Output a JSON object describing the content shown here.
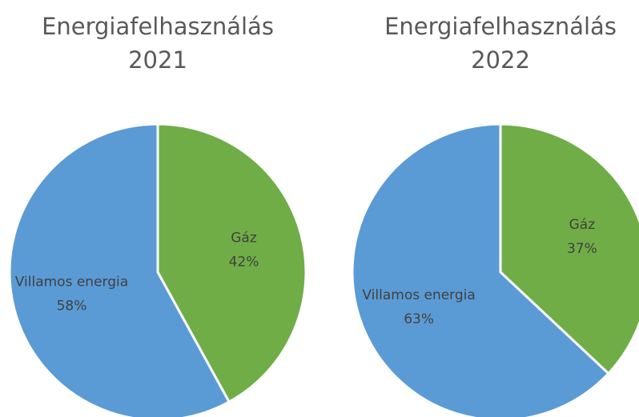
{
  "chart_data": [
    {
      "type": "pie",
      "title": "Energiafelhasználás 2021",
      "categories": [
        "Gáz",
        "Villamos energia"
      ],
      "values": [
        42,
        58
      ],
      "value_labels": [
        "42%",
        "58%"
      ],
      "colors": [
        "#70ad47",
        "#5b9bd5"
      ]
    },
    {
      "type": "pie",
      "title": "Energiafelhasználás 2022",
      "categories": [
        "Gáz",
        "Villamos energia"
      ],
      "values": [
        37,
        63
      ],
      "value_labels": [
        "37%",
        "63%"
      ],
      "colors": [
        "#70ad47",
        "#5b9bd5"
      ]
    }
  ]
}
